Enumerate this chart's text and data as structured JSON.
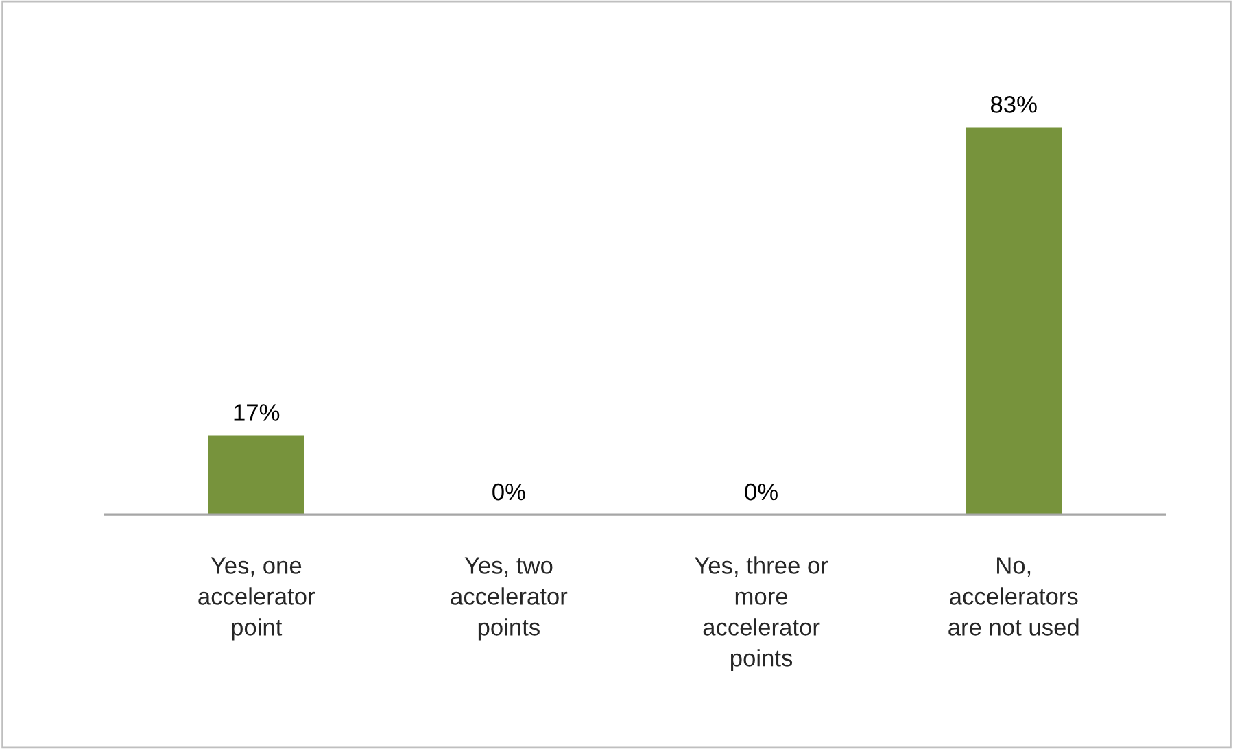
{
  "chart_data": {
    "type": "bar",
    "categories": [
      "Yes, one accelerator point",
      "Yes, two accelerator points",
      "Yes, three or more accelerator points",
      "No, accelerators are not used"
    ],
    "values": [
      17,
      0,
      0,
      83
    ],
    "value_labels": [
      "17%",
      "0%",
      "0%",
      "83%"
    ],
    "color": "#77933c",
    "grid": false,
    "legend": false
  }
}
